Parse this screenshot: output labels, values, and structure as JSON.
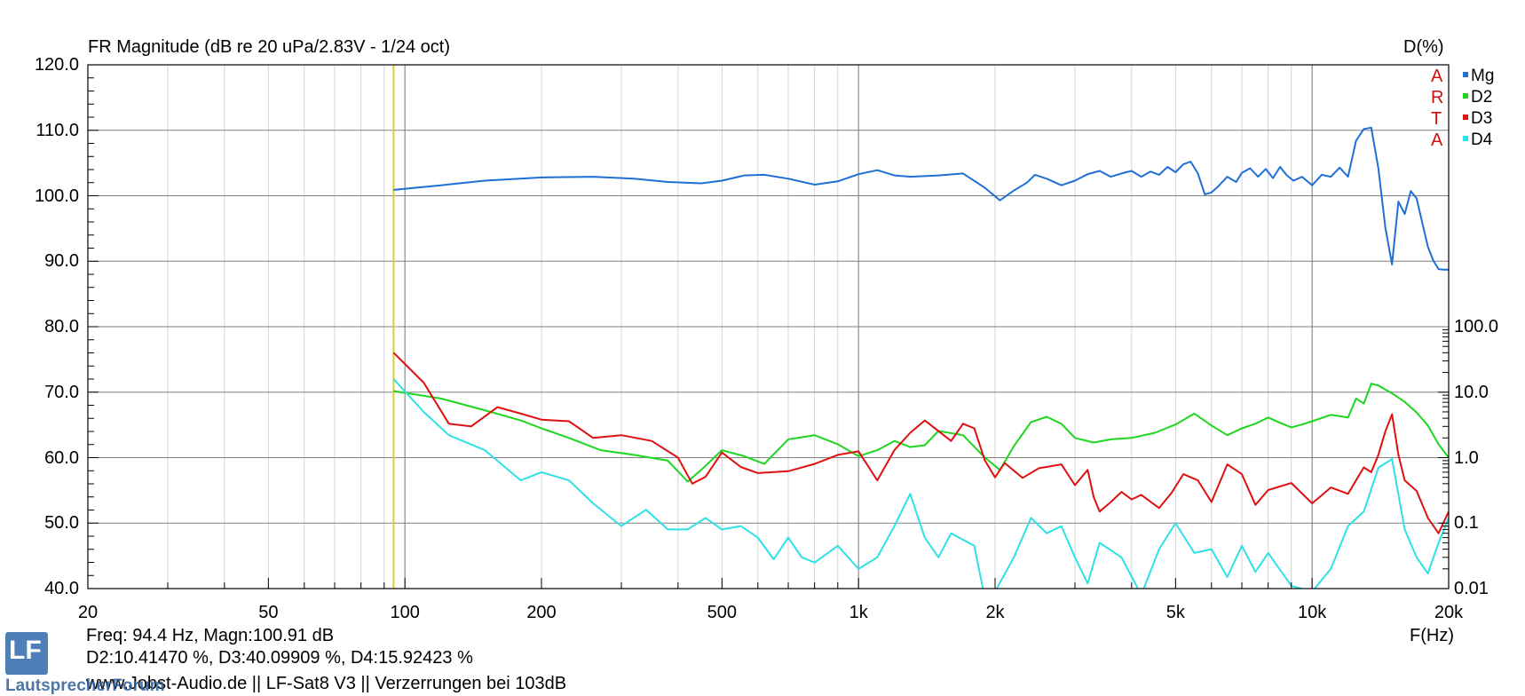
{
  "chart_title": "FR Magnitude (dB re 20 uPa/2.83V - 1/24 oct)",
  "right_axis_title": "D(%)",
  "x_axis_unit_label": "F(Hz)",
  "arta_letters": [
    "A",
    "R",
    "T",
    "A"
  ],
  "cursor_info": {
    "line1": "Freq: 94.4 Hz, Magn:100.91 dB",
    "line2": "D2:10.41470 %, D3:40.09909 %, D4:15.92423 %"
  },
  "footer": "www.Jobst-Audio.de  ||  LF-Sat8 V3  ||  Verzerrungen bei 103dB",
  "watermark": {
    "logo_text": "LF",
    "brand": "LautsprecherForum"
  },
  "colors": {
    "Mg": "#1f6fd6",
    "D2": "#1fd61f",
    "D3": "#e01010",
    "D4": "#2fe0e6",
    "cursor": "#d6d030",
    "grid_major": "#808080",
    "grid_minor": "#d4d4d4",
    "arta": "#d01010"
  },
  "chart_data": {
    "type": "line",
    "title": "FR Magnitude (dB re 20 uPa/2.83V - 1/24 oct)",
    "x_scale": "log",
    "xlim": [
      20,
      20000
    ],
    "x_ticks": [
      20,
      50,
      100,
      200,
      500,
      1000,
      2000,
      5000,
      10000,
      20000
    ],
    "x_tick_labels": [
      "20",
      "50",
      "100",
      "200",
      "500",
      "1k",
      "2k",
      "5k",
      "10k",
      "20k"
    ],
    "xlabel": "F(Hz)",
    "y_left": {
      "ylim": [
        40,
        120
      ],
      "ticks": [
        40,
        50,
        60,
        70,
        80,
        90,
        100,
        110,
        120
      ],
      "tick_labels": [
        "40.0",
        "50.0",
        "60.0",
        "70.0",
        "80.0",
        "90.0",
        "100.0",
        "110.0",
        "120.0"
      ],
      "label": "dB"
    },
    "y_right": {
      "scale": "log",
      "ylim": [
        0.01,
        100
      ],
      "ticks": [
        0.01,
        0.1,
        1,
        10,
        100
      ],
      "tick_labels": [
        "0.01",
        "0.1",
        "1.0",
        "10.0",
        "100.0"
      ],
      "label": "D(%)"
    },
    "cursor_hz": 94.4,
    "grid": true,
    "legend_position": "top-right",
    "series": [
      {
        "name": "Mg",
        "axis": "left",
        "x": [
          94.4,
          120,
          150,
          200,
          260,
          320,
          380,
          450,
          500,
          560,
          620,
          700,
          800,
          900,
          1000,
          1100,
          1200,
          1300,
          1500,
          1700,
          1900,
          2050,
          2200,
          2350,
          2450,
          2600,
          2800,
          3000,
          3200,
          3400,
          3600,
          3800,
          4000,
          4200,
          4400,
          4600,
          4800,
          5000,
          5200,
          5400,
          5600,
          5800,
          6000,
          6200,
          6500,
          6800,
          7000,
          7300,
          7600,
          7900,
          8200,
          8500,
          8800,
          9100,
          9500,
          10000,
          10500,
          11000,
          11500,
          12000,
          12500,
          13000,
          13500,
          14000,
          14500,
          15000,
          15500,
          16000,
          16500,
          17000,
          17500,
          18000,
          18500,
          19000,
          19500,
          20000
        ],
        "y": [
          100.9,
          101.6,
          102.3,
          102.8,
          102.9,
          102.6,
          102.1,
          101.9,
          102.3,
          103.1,
          103.2,
          102.6,
          101.7,
          102.2,
          103.3,
          103.9,
          103.1,
          102.9,
          103.1,
          103.4,
          101.2,
          99.3,
          100.8,
          102.0,
          103.2,
          102.6,
          101.6,
          102.3,
          103.3,
          103.8,
          102.9,
          103.4,
          103.8,
          102.9,
          103.7,
          103.2,
          104.4,
          103.6,
          104.8,
          105.2,
          103.4,
          100.2,
          100.5,
          101.4,
          102.9,
          102.1,
          103.5,
          104.2,
          102.9,
          104.1,
          102.7,
          104.4,
          103.1,
          102.3,
          102.9,
          101.6,
          103.2,
          102.9,
          104.3,
          102.9,
          108.4,
          110.2,
          110.4,
          104.2,
          95.2,
          89.5,
          99.1,
          97.2,
          100.7,
          99.6,
          95.8,
          92.2,
          90.1,
          88.8,
          88.7,
          88.7
        ]
      },
      {
        "name": "D2",
        "axis": "right",
        "x": [
          94.4,
          120,
          150,
          180,
          200,
          230,
          270,
          320,
          380,
          420,
          450,
          500,
          560,
          620,
          700,
          800,
          900,
          1000,
          1100,
          1200,
          1300,
          1400,
          1500,
          1700,
          1900,
          2050,
          2200,
          2400,
          2600,
          2800,
          3000,
          3300,
          3600,
          4000,
          4500,
          5000,
          5500,
          6000,
          6500,
          7000,
          7500,
          8000,
          8500,
          9000,
          9500,
          10000,
          11000,
          12000,
          12500,
          13000,
          13500,
          14000,
          15000,
          16000,
          17000,
          18000,
          19000,
          20000
        ],
        "y": [
          10.4,
          8.0,
          5.3,
          3.7,
          2.8,
          2.0,
          1.3,
          1.1,
          0.9,
          0.43,
          0.65,
          1.3,
          1.05,
          0.8,
          1.9,
          2.2,
          1.6,
          1.05,
          1.3,
          1.8,
          1.45,
          1.55,
          2.55,
          2.2,
          1.0,
          0.65,
          1.5,
          3.5,
          4.2,
          3.3,
          2.0,
          1.7,
          1.9,
          2.0,
          2.4,
          3.2,
          4.7,
          3.1,
          2.2,
          2.8,
          3.3,
          4.1,
          3.4,
          2.9,
          3.2,
          3.6,
          4.5,
          4.1,
          8.0,
          6.7,
          13.5,
          12.6,
          9.6,
          7.1,
          4.9,
          3.1,
          1.6,
          1.0
        ]
      },
      {
        "name": "D3",
        "axis": "right",
        "x": [
          94.4,
          110,
          125,
          140,
          160,
          180,
          200,
          230,
          260,
          300,
          350,
          400,
          430,
          460,
          500,
          550,
          600,
          700,
          800,
          900,
          1000,
          1100,
          1200,
          1300,
          1400,
          1600,
          1700,
          1800,
          1900,
          2000,
          2100,
          2300,
          2500,
          2800,
          3000,
          3200,
          3300,
          3400,
          3600,
          3800,
          4000,
          4200,
          4600,
          4900,
          5200,
          5600,
          6000,
          6500,
          7000,
          7500,
          8000,
          9000,
          10000,
          11000,
          12000,
          13000,
          13500,
          14000,
          14500,
          15000,
          15500,
          16000,
          17000,
          18000,
          19000,
          20000
        ],
        "y": [
          40.1,
          14.0,
          3.3,
          3.0,
          5.9,
          4.7,
          3.8,
          3.6,
          2.0,
          2.2,
          1.8,
          1.0,
          0.4,
          0.51,
          1.2,
          0.72,
          0.58,
          0.62,
          0.8,
          1.1,
          1.25,
          0.45,
          1.3,
          2.4,
          3.7,
          1.8,
          3.3,
          2.8,
          0.9,
          0.5,
          0.83,
          0.49,
          0.69,
          0.79,
          0.38,
          0.65,
          0.25,
          0.15,
          0.21,
          0.3,
          0.23,
          0.27,
          0.17,
          0.29,
          0.56,
          0.45,
          0.21,
          0.79,
          0.56,
          0.19,
          0.32,
          0.41,
          0.2,
          0.35,
          0.28,
          0.71,
          0.6,
          1.1,
          2.5,
          4.6,
          1.1,
          0.45,
          0.31,
          0.12,
          0.07,
          0.15
        ]
      },
      {
        "name": "D4",
        "axis": "right",
        "x": [
          94.4,
          110,
          125,
          150,
          180,
          200,
          230,
          260,
          300,
          340,
          380,
          420,
          460,
          500,
          550,
          600,
          650,
          700,
          750,
          800,
          900,
          1000,
          1100,
          1200,
          1300,
          1400,
          1500,
          1600,
          1800,
          1900,
          2000,
          2200,
          2400,
          2600,
          2800,
          3000,
          3200,
          3400,
          3800,
          4200,
          4600,
          5000,
          5500,
          6000,
          6500,
          7000,
          7500,
          8000,
          9000,
          10000,
          11000,
          12000,
          13000,
          14000,
          15000,
          16000,
          17000,
          18000,
          19000,
          20000
        ],
        "y": [
          15.9,
          5.0,
          2.2,
          1.3,
          0.45,
          0.6,
          0.45,
          0.2,
          0.09,
          0.16,
          0.08,
          0.08,
          0.12,
          0.08,
          0.09,
          0.06,
          0.028,
          0.06,
          0.03,
          0.025,
          0.045,
          0.02,
          0.03,
          0.09,
          0.28,
          0.06,
          0.03,
          0.07,
          0.045,
          0.007,
          0.009,
          0.03,
          0.12,
          0.07,
          0.09,
          0.03,
          0.012,
          0.05,
          0.03,
          0.008,
          0.04,
          0.1,
          0.035,
          0.04,
          0.015,
          0.045,
          0.018,
          0.035,
          0.011,
          0.009,
          0.02,
          0.09,
          0.15,
          0.7,
          0.95,
          0.08,
          0.03,
          0.017,
          0.05,
          0.12
        ]
      }
    ]
  }
}
